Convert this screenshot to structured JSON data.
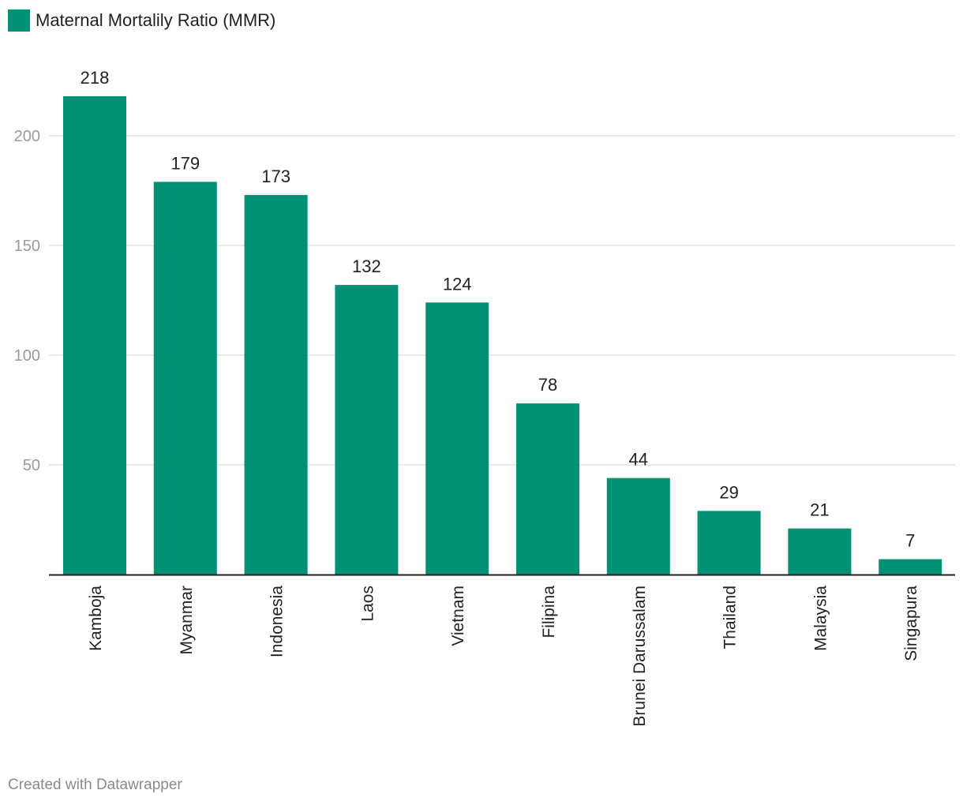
{
  "legend": {
    "label": "Maternal Mortalily Ratio (MMR)",
    "color": "#009174"
  },
  "credit": "Created with Datawrapper",
  "chart_data": {
    "type": "bar",
    "categories": [
      "Kamboja",
      "Myanmar",
      "Indonesia",
      "Laos",
      "Vietnam",
      "Filipina",
      "Brunei Darussalam",
      "Thailand",
      "Malaysia",
      "Singapura"
    ],
    "series": [
      {
        "name": "Maternal Mortalily Ratio (MMR)",
        "values": [
          218,
          179,
          173,
          132,
          124,
          78,
          44,
          29,
          21,
          7
        ]
      }
    ],
    "yticks": [
      50,
      100,
      150,
      200
    ],
    "ylim": [
      0,
      218
    ],
    "grid": true,
    "legend_position": "top-left",
    "bar_color": "#009174"
  }
}
